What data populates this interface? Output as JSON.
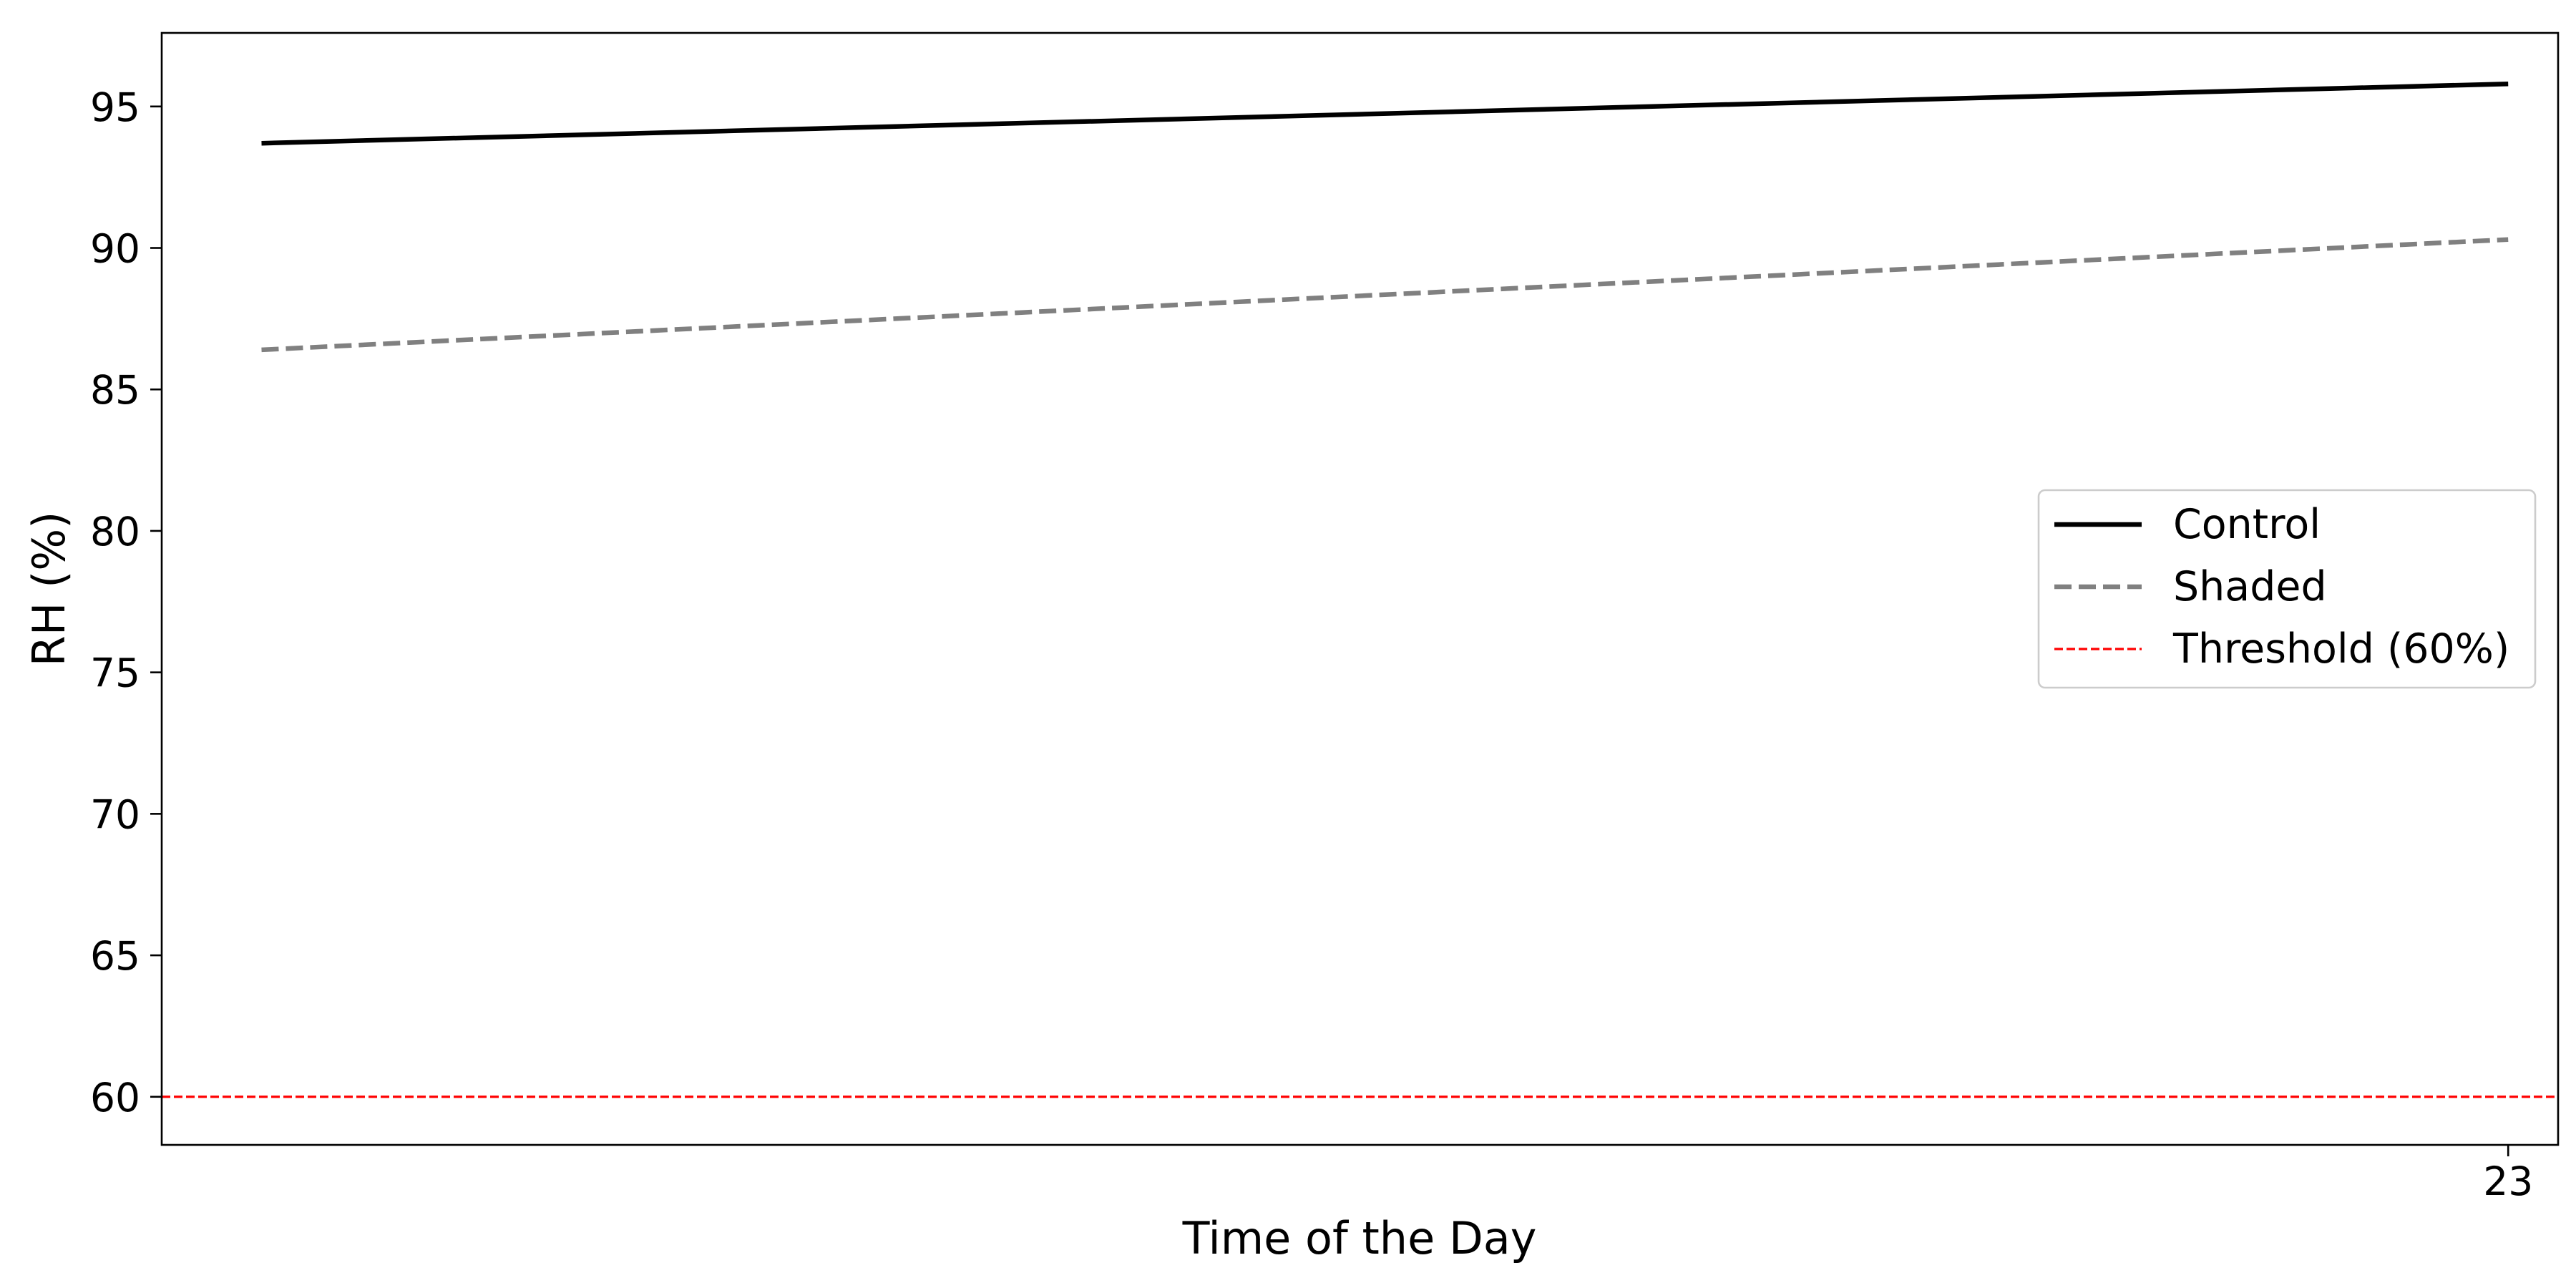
{
  "chart_data": {
    "type": "line",
    "title": "",
    "xlabel": "Time of the Day",
    "ylabel": "RH (%)",
    "x_ticks": [
      23
    ],
    "x_tick_labels": [
      "23"
    ],
    "y_ticks": [
      60,
      65,
      70,
      75,
      80,
      85,
      90,
      95
    ],
    "y_tick_labels": [
      "60",
      "65",
      "70",
      "75",
      "80",
      "85",
      "90",
      "95"
    ],
    "xlim": [
      -0.5,
      23.5
    ],
    "ylim": [
      58.3,
      97.6
    ],
    "grid": false,
    "legend_position": "center-right",
    "series": [
      {
        "name": "Control",
        "style": "solid",
        "color": "#000000",
        "x": [
          0.5,
          23
        ],
        "y": [
          93.7,
          95.8
        ]
      },
      {
        "name": "Shaded",
        "style": "dashed",
        "color": "#808080",
        "x": [
          0.5,
          23
        ],
        "y": [
          86.4,
          90.3
        ]
      }
    ],
    "reference_lines": [
      {
        "name": "Threshold (60%)",
        "orientation": "horizontal",
        "value": 60,
        "style": "dashed",
        "color": "#ff0000"
      }
    ]
  }
}
